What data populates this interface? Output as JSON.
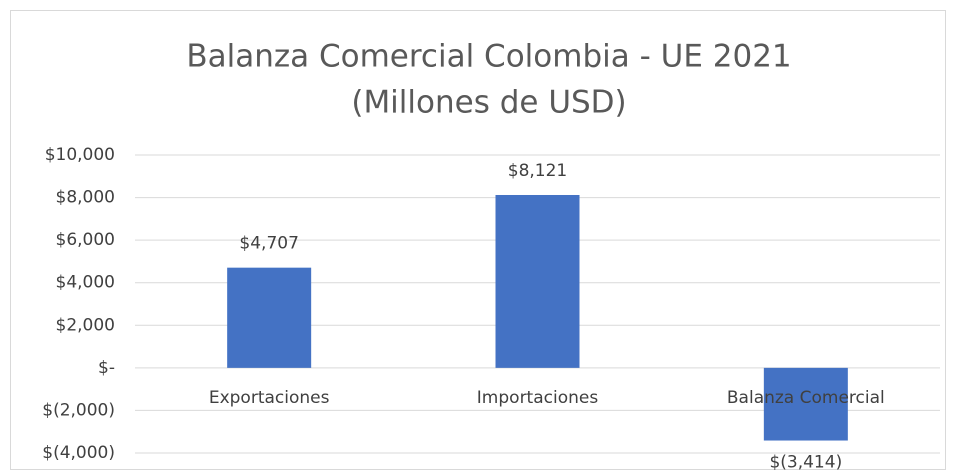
{
  "chart_data": {
    "type": "bar",
    "title": "Balanza Comercial Colombia - UE 2021",
    "subtitle": "(Millones de USD)",
    "categories": [
      "Exportaciones",
      "Importaciones",
      "Balanza Comercial"
    ],
    "values": [
      4707,
      8121,
      -3414
    ],
    "value_labels": [
      "$4,707",
      "$8,121",
      "$(3,414)"
    ],
    "color": "#4472c4",
    "ylim": [
      -4000,
      10000
    ],
    "yticks": [
      {
        "value": -4000,
        "label": "$(4,000)"
      },
      {
        "value": -2000,
        "label": "$(2,000)"
      },
      {
        "value": 0,
        "label": "$-"
      },
      {
        "value": 2000,
        "label": "$2,000"
      },
      {
        "value": 4000,
        "label": "$4,000"
      },
      {
        "value": 6000,
        "label": "$6,000"
      },
      {
        "value": 8000,
        "label": "$8,000"
      },
      {
        "value": 10000,
        "label": "$10,000"
      }
    ],
    "grid": true
  }
}
